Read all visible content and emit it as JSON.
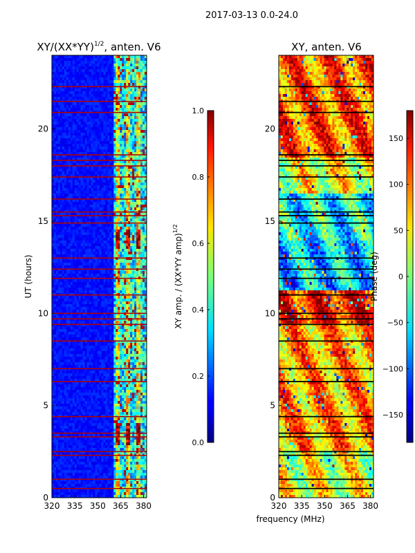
{
  "chart_data": {
    "suptitle": "2017-03-13 0.0-24.0",
    "xlabel": "frequency (MHz)",
    "panels": [
      {
        "type": "heatmap",
        "title": "XY/(XX*YY)",
        "title_exponent": "1/2",
        "title_suffix": ", anten. V6",
        "ylabel": "UT (hours)",
        "xlim": [
          320,
          382
        ],
        "ylim": [
          0,
          24
        ],
        "xticks": [
          "320",
          "335",
          "350",
          "365",
          "380"
        ],
        "yticks": [
          "0",
          "5",
          "10",
          "15",
          "20"
        ],
        "xtick_values": [
          320,
          335,
          350,
          365,
          380
        ],
        "ytick_values": [
          0,
          5,
          10,
          15,
          20
        ],
        "band_start_mhz": 360,
        "colorbar": {
          "label": "XY amp. / (XX*YY amp)",
          "label_exponent": "1/2",
          "range": [
            0.0,
            1.0
          ],
          "ticks": [
            "0.0",
            "0.2",
            "0.4",
            "0.6",
            "0.8",
            "1.0"
          ],
          "tick_values": [
            0.0,
            0.2,
            0.4,
            0.6,
            0.8,
            1.0
          ]
        },
        "flagged_rows_ut": [
          0.5,
          1.0,
          2.3,
          2.5,
          3.3,
          3.5,
          4.4,
          6.3,
          7.0,
          8.5,
          9.4,
          9.7,
          10.0,
          11.0,
          11.9,
          12.4,
          13.0,
          14.9,
          15.3,
          15.5,
          16.2,
          17.4,
          18.0,
          18.3,
          18.6,
          20.9,
          21.5,
          22.3
        ]
      },
      {
        "type": "heatmap",
        "title": "XY, anten. V6",
        "xlim": [
          320,
          382
        ],
        "ylim": [
          0,
          24
        ],
        "xticks": [
          "320",
          "335",
          "350",
          "365",
          "380"
        ],
        "yticks": [
          "0",
          "5",
          "10",
          "15",
          "20"
        ],
        "xtick_values": [
          320,
          335,
          350,
          365,
          380
        ],
        "ytick_values": [
          0,
          5,
          10,
          15,
          20
        ],
        "colorbar": {
          "label": "Phase (deg)",
          "range": [
            -180,
            180
          ],
          "ticks": [
            "−150",
            "−100",
            "−50",
            "0",
            "50",
            "100",
            "150"
          ],
          "tick_values": [
            -150,
            -100,
            -50,
            0,
            50,
            100,
            150
          ]
        },
        "flagged_rows_ut": [
          0.5,
          1.0,
          2.3,
          2.5,
          3.3,
          3.5,
          4.4,
          6.3,
          7.0,
          8.5,
          9.4,
          9.7,
          10.0,
          11.0,
          11.9,
          12.4,
          13.0,
          14.9,
          15.3,
          15.5,
          16.2,
          17.4,
          18.0,
          18.3,
          18.6,
          20.9,
          21.5,
          22.3
        ]
      }
    ]
  }
}
